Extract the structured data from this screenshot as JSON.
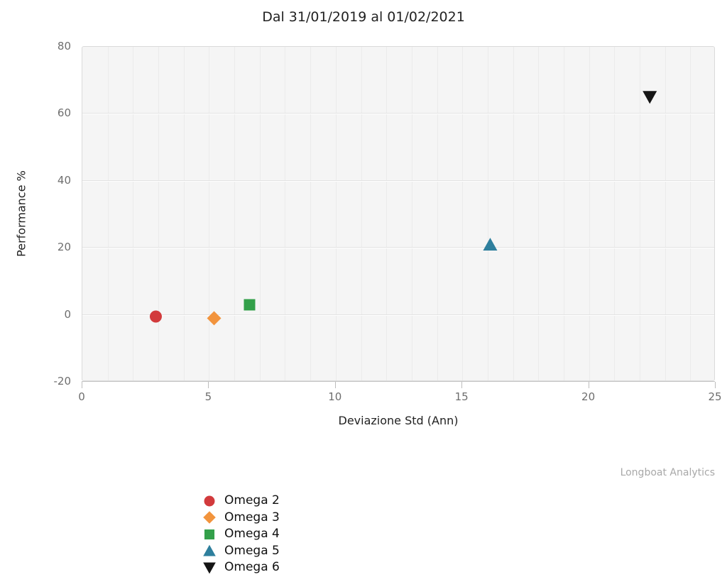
{
  "chart_data": {
    "type": "scatter",
    "title": "Dal 31/01/2019 al 01/02/2021",
    "xlabel": "Deviazione Std (Ann)",
    "ylabel": "Performance %",
    "xlim": [
      0,
      25
    ],
    "ylim": [
      -20,
      80
    ],
    "xticks": [
      0,
      5,
      10,
      15,
      20,
      25
    ],
    "yticks": [
      -20,
      0,
      20,
      40,
      60,
      80
    ],
    "grid": {
      "h_major_step": 20,
      "v_minor_step": 1,
      "panel_bg": "#f5f5f5",
      "h_grid_color": "#e2e2e2",
      "v_grid_color": "#ebebeb"
    },
    "legend_position": "bottom-left",
    "credit": "Longboat Analytics",
    "series": [
      {
        "name": "Omega 2",
        "marker": "circle",
        "color": "#d23a3c",
        "points": [
          {
            "x": 2.9,
            "y": -0.5
          }
        ]
      },
      {
        "name": "Omega 3",
        "marker": "diamond",
        "color": "#f2943d",
        "points": [
          {
            "x": 5.2,
            "y": -1
          }
        ]
      },
      {
        "name": "Omega 4",
        "marker": "square",
        "color": "#33a04a",
        "points": [
          {
            "x": 6.6,
            "y": 3
          }
        ]
      },
      {
        "name": "Omega 5",
        "marker": "triangle-up",
        "color": "#2e7f9d",
        "points": [
          {
            "x": 16.1,
            "y": 21
          }
        ]
      },
      {
        "name": "Omega 6",
        "marker": "triangle-down",
        "color": "#151515",
        "points": [
          {
            "x": 22.4,
            "y": 65
          }
        ]
      }
    ]
  }
}
